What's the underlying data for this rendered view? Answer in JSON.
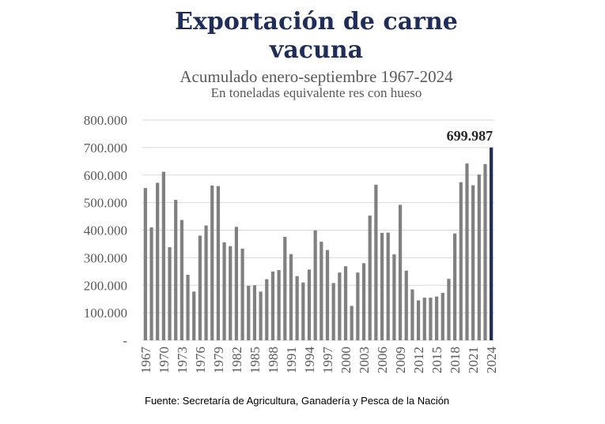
{
  "chart_data": {
    "type": "bar",
    "title": "Exportación de carne vacuna",
    "title_lines": [
      "Exportación de carne",
      "vacuna"
    ],
    "subtitle": "Acumulado enero-septiembre 1967-2024",
    "unit_label": "En toneladas equivalente res con hueso",
    "source": "Fuente: Secretaría de Agricultura, Ganadería y Pesca de la Nación",
    "ylim": [
      0,
      800000
    ],
    "yticks": [
      "-",
      "100.000",
      "200.000",
      "300.000",
      "400.000",
      "500.000",
      "600.000",
      "700.000",
      "800.000"
    ],
    "x_tick_labels": [
      "1967",
      "1970",
      "1973",
      "1976",
      "1979",
      "1982",
      "1985",
      "1988",
      "1991",
      "1994",
      "1997",
      "2000",
      "2003",
      "2006",
      "2009",
      "2012",
      "2015",
      "2018",
      "2021",
      "2024"
    ],
    "categories": [
      "1967",
      "1968",
      "1969",
      "1970",
      "1971",
      "1972",
      "1973",
      "1974",
      "1975",
      "1976",
      "1977",
      "1978",
      "1979",
      "1980",
      "1981",
      "1982",
      "1983",
      "1984",
      "1985",
      "1986",
      "1987",
      "1988",
      "1989",
      "1990",
      "1991",
      "1992",
      "1993",
      "1994",
      "1995",
      "1996",
      "1997",
      "1998",
      "1999",
      "2000",
      "2001",
      "2002",
      "2003",
      "2004",
      "2005",
      "2006",
      "2007",
      "2008",
      "2009",
      "2010",
      "2011",
      "2012",
      "2013",
      "2014",
      "2015",
      "2016",
      "2017",
      "2018",
      "2019",
      "2020",
      "2021",
      "2022",
      "2023",
      "2024"
    ],
    "values": [
      553000,
      410000,
      572000,
      612000,
      338000,
      510000,
      437000,
      238000,
      177000,
      380000,
      417000,
      562000,
      560000,
      356000,
      342000,
      412000,
      333000,
      198000,
      200000,
      177000,
      222000,
      250000,
      255000,
      376000,
      313000,
      233000,
      210000,
      257000,
      399000,
      358000,
      328000,
      208000,
      246000,
      269000,
      125000,
      246000,
      280000,
      453000,
      565000,
      390000,
      391000,
      312000,
      492000,
      253000,
      185000,
      145000,
      155000,
      155000,
      159000,
      172000,
      223000,
      388000,
      574000,
      642000,
      563000,
      602000,
      640000,
      699987
    ],
    "highlight": {
      "category": "2024",
      "label": "699.987"
    },
    "colors": {
      "bar": "#808080",
      "highlight": "#1f2d5c",
      "grid": "#d9d9d9",
      "title": "#1f2d5c",
      "text": "#595959"
    }
  }
}
